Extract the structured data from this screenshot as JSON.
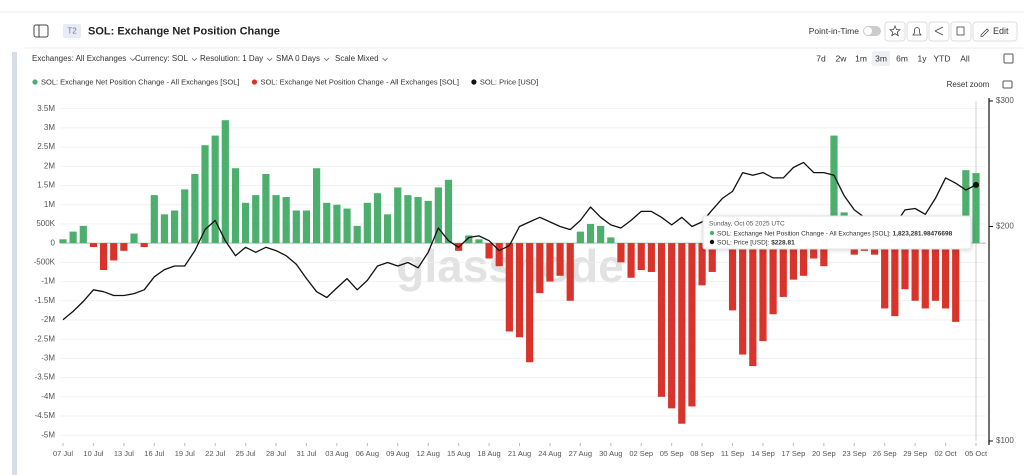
{
  "header": {
    "badge": "T2",
    "title": "SOL: Exchange Net Position Change",
    "point_in_time": "Point-in-Time",
    "edit": "Edit"
  },
  "toolbar": {
    "filters": [
      "Exchanges: All Exchanges",
      "Currency: SOL",
      "Resolution: 1 Day",
      "SMA 0 Days",
      "Scale Mixed"
    ],
    "ranges": [
      "7d",
      "2w",
      "1m",
      "3m",
      "6m",
      "1y",
      "YTD",
      "All"
    ],
    "active_range": "3m",
    "reset_zoom": "Reset zoom"
  },
  "watermark": "glassnode",
  "tooltip": {
    "date": "Sunday, Oct 05 2025 UTC",
    "rows": [
      {
        "label": "SOL: Exchange Net Position Change - All Exchanges [SOL]: ",
        "value": "1,823,281.98476698"
      },
      {
        "label": "SOL: Price [USD]: ",
        "value": "$228.81"
      }
    ]
  },
  "chart_data": {
    "type": "bar",
    "categories": [
      "07 Jul",
      null,
      null,
      "10 Jul",
      null,
      null,
      "13 Jul",
      null,
      null,
      "16 Jul",
      null,
      null,
      "19 Jul",
      null,
      null,
      "22 Jul",
      null,
      null,
      "25 Jul",
      null,
      null,
      "28 Jul",
      null,
      null,
      "31 Jul",
      null,
      null,
      "03 Aug",
      null,
      null,
      "06 Aug",
      null,
      null,
      "09 Aug",
      null,
      null,
      "12 Aug",
      null,
      null,
      "15 Aug",
      null,
      null,
      "18 Aug",
      null,
      null,
      "21 Aug",
      null,
      null,
      "24 Aug",
      null,
      null,
      "27 Aug",
      null,
      null,
      "30 Aug",
      null,
      null,
      "02 Sep",
      null,
      null,
      "05 Sep",
      null,
      null,
      "08 Sep",
      null,
      null,
      "11 Sep",
      null,
      null,
      "14 Sep",
      null,
      null,
      "17 Sep",
      null,
      null,
      "20 Sep",
      null,
      null,
      "23 Sep",
      null,
      null,
      "26 Sep",
      null,
      null,
      "29 Sep",
      null,
      null,
      "02 Oct",
      null,
      null,
      "05 Oct"
    ],
    "series": [
      {
        "name": "SOL: Exchange Net Position Change - All Exchanges [SOL]",
        "color": "#4caf6e",
        "type": "bar",
        "values": [
          100000,
          300000,
          450000,
          null,
          null,
          null,
          null,
          250000,
          null,
          1250000,
          750000,
          850000,
          1400000,
          1800000,
          2550000,
          2800000,
          3200000,
          1950000,
          1050000,
          1250000,
          1800000,
          1250000,
          1200000,
          850000,
          850000,
          1950000,
          1050000,
          1000000,
          900000,
          450000,
          1050000,
          1300000,
          750000,
          1450000,
          1250000,
          1200000,
          1100000,
          1450000,
          1650000,
          null,
          200000,
          100000,
          null,
          null,
          null,
          null,
          null,
          null,
          null,
          null,
          null,
          300000,
          500000,
          450000,
          150000,
          null,
          null,
          null,
          null,
          null,
          null,
          null,
          null,
          null,
          null,
          null,
          null,
          null,
          null,
          null,
          null,
          null,
          null,
          null,
          null,
          null,
          2800000,
          800000,
          null,
          null,
          null,
          null,
          null,
          null,
          null,
          null,
          null,
          null,
          null,
          1900000,
          1823281.98476698
        ]
      },
      {
        "name": "SOL: Exchange Net Position Change - All Exchanges [SOL]",
        "color": "#d9342b",
        "type": "bar",
        "values": [
          null,
          null,
          null,
          -100000,
          -700000,
          -450000,
          -200000,
          null,
          -100000,
          null,
          null,
          null,
          null,
          null,
          null,
          null,
          null,
          null,
          null,
          null,
          null,
          null,
          null,
          null,
          null,
          null,
          null,
          null,
          null,
          null,
          null,
          null,
          null,
          null,
          null,
          null,
          null,
          null,
          null,
          -200000,
          null,
          null,
          -400000,
          -600000,
          -2300000,
          -2450000,
          -3100000,
          -1300000,
          -1000000,
          -850000,
          -1500000,
          null,
          null,
          null,
          null,
          -500000,
          -900000,
          -700000,
          -750000,
          -4000000,
          -4300000,
          -4700000,
          -4250000,
          -1100000,
          -750000,
          -50000,
          -1750000,
          -2900000,
          -3200000,
          -2550000,
          -1850000,
          -1400000,
          -950000,
          -850000,
          -400000,
          -600000,
          null,
          null,
          -300000,
          -200000,
          -300000,
          -1700000,
          -1900000,
          -1200000,
          -1500000,
          -1700000,
          -1500000,
          -1700000,
          -2050000,
          null,
          null
        ]
      },
      {
        "name": "SOL: Price [USD]",
        "color": "#111111",
        "type": "line",
        "axis": "y2",
        "values": [
          148,
          152,
          157,
          163,
          162,
          160,
          160,
          161,
          163,
          170,
          174,
          176,
          176,
          185,
          198,
          204,
          191,
          182,
          187,
          184,
          187,
          185,
          182,
          177,
          169,
          162,
          159,
          164,
          169,
          163,
          168,
          176,
          178,
          176,
          178,
          175,
          184,
          199,
          191,
          187,
          193,
          194,
          191,
          185,
          188,
          200,
          203,
          206,
          203,
          200,
          198,
          204,
          213,
          206,
          201,
          199,
          204,
          210,
          210,
          206,
          201,
          206,
          200,
          203,
          211,
          219,
          224,
          238,
          236,
          238,
          234,
          234,
          242,
          246,
          238,
          238,
          236,
          221,
          211,
          206,
          199,
          196,
          201,
          211,
          212,
          208,
          219,
          234,
          230,
          225,
          228.81
        ]
      }
    ],
    "ylim": [
      -5150000,
      3700000
    ],
    "yticks": [
      {
        "value": 3500000,
        "label": "3.5M"
      },
      {
        "value": 3000000,
        "label": "3M"
      },
      {
        "value": 2500000,
        "label": "2.5M"
      },
      {
        "value": 2000000,
        "label": "2M"
      },
      {
        "value": 1500000,
        "label": "1.5M"
      },
      {
        "value": 1000000,
        "label": "1M"
      },
      {
        "value": 500000,
        "label": "500K"
      },
      0,
      {
        "value": -500000,
        "label": "-500K"
      },
      {
        "value": -1000000,
        "label": "-1M"
      },
      {
        "value": -1500000,
        "label": "-1.5M"
      },
      {
        "value": -2000000,
        "label": "-2M"
      },
      {
        "value": -2500000,
        "label": "-2.5M"
      },
      {
        "value": -3000000,
        "label": "-3M"
      },
      {
        "value": -3500000,
        "label": "-3.5M"
      },
      {
        "value": -4000000,
        "label": "-4M"
      },
      {
        "value": -4500000,
        "label": "-4.5M"
      },
      {
        "value": -5000000,
        "label": "-5M"
      }
    ],
    "y2lim": [
      100,
      300
    ],
    "y2scale": "log",
    "y2ticks": [
      {
        "value": 300,
        "label": "$300"
      },
      {
        "value": 200,
        "label": "$200"
      },
      {
        "value": 100,
        "label": "$100"
      }
    ],
    "grid": true,
    "legend": "top-left"
  }
}
